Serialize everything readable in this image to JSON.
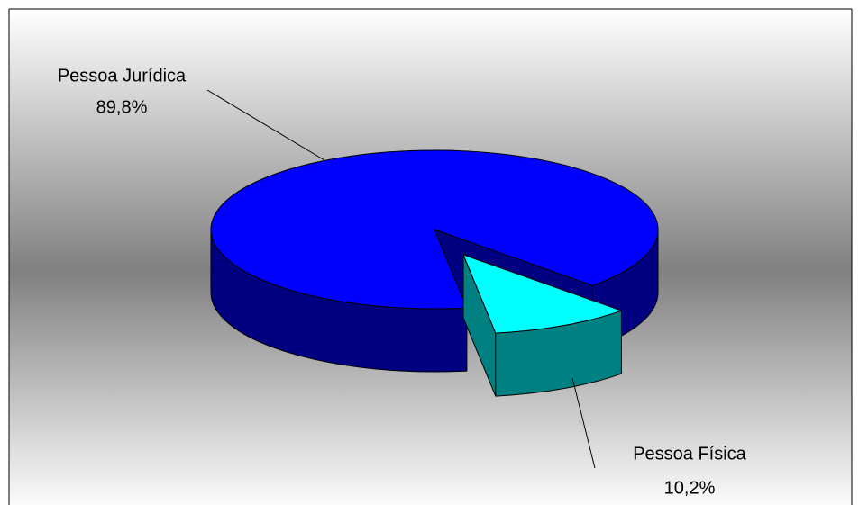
{
  "chart_data": {
    "type": "pie",
    "categories": [
      "Pessoa Jurídica",
      "Pessoa Física"
    ],
    "values": [
      89.8,
      10.2
    ],
    "value_labels": [
      "89,8%",
      "10,2%"
    ],
    "colors": [
      "#0000ff",
      "#00ffff"
    ],
    "side_colors": [
      "#000080",
      "#008080"
    ]
  }
}
